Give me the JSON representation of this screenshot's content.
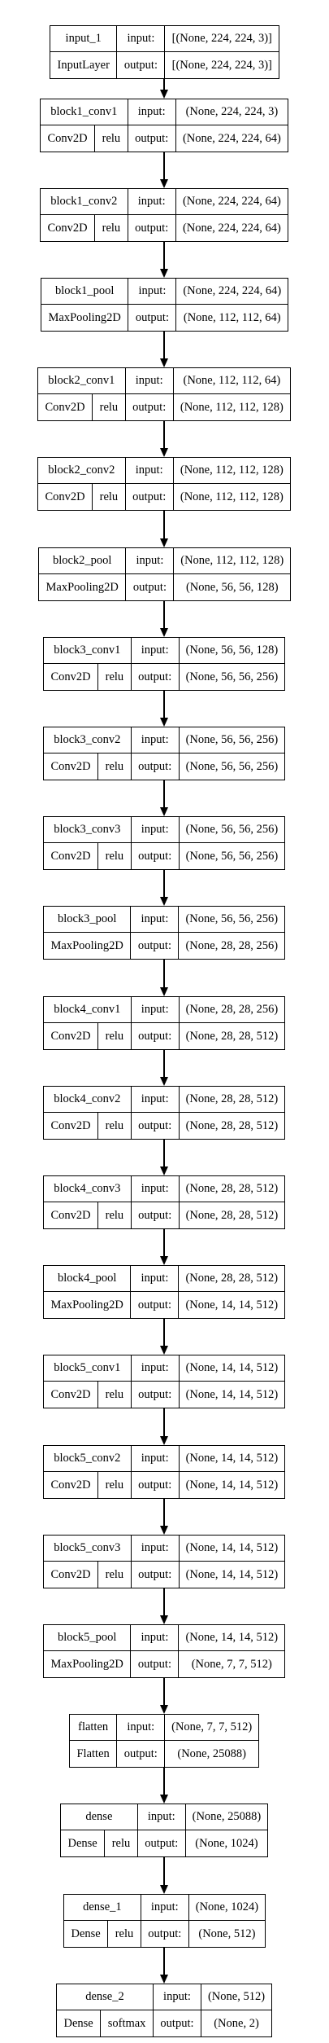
{
  "layers": [
    {
      "name": "input_1",
      "type": "InputLayer",
      "activation": "",
      "input_label": "input:",
      "output_label": "output:",
      "input_shape": "[(None, 224, 224, 3)]",
      "output_shape": "[(None, 224, 224, 3)]"
    },
    {
      "name": "block1_conv1",
      "type": "Conv2D",
      "activation": "relu",
      "input_label": "input:",
      "output_label": "output:",
      "input_shape": "(None, 224, 224, 3)",
      "output_shape": "(None, 224, 224, 64)"
    },
    {
      "name": "block1_conv2",
      "type": "Conv2D",
      "activation": "relu",
      "input_label": "input:",
      "output_label": "output:",
      "input_shape": "(None, 224, 224, 64)",
      "output_shape": "(None, 224, 224, 64)"
    },
    {
      "name": "block1_pool",
      "type": "MaxPooling2D",
      "activation": "",
      "input_label": "input:",
      "output_label": "output:",
      "input_shape": "(None, 224, 224, 64)",
      "output_shape": "(None, 112, 112, 64)"
    },
    {
      "name": "block2_conv1",
      "type": "Conv2D",
      "activation": "relu",
      "input_label": "input:",
      "output_label": "output:",
      "input_shape": "(None, 112, 112, 64)",
      "output_shape": "(None, 112, 112, 128)"
    },
    {
      "name": "block2_conv2",
      "type": "Conv2D",
      "activation": "relu",
      "input_label": "input:",
      "output_label": "output:",
      "input_shape": "(None, 112, 112, 128)",
      "output_shape": "(None, 112, 112, 128)"
    },
    {
      "name": "block2_pool",
      "type": "MaxPooling2D",
      "activation": "",
      "input_label": "input:",
      "output_label": "output:",
      "input_shape": "(None, 112, 112, 128)",
      "output_shape": "(None, 56, 56, 128)"
    },
    {
      "name": "block3_conv1",
      "type": "Conv2D",
      "activation": "relu",
      "input_label": "input:",
      "output_label": "output:",
      "input_shape": "(None, 56, 56, 128)",
      "output_shape": "(None, 56, 56, 256)"
    },
    {
      "name": "block3_conv2",
      "type": "Conv2D",
      "activation": "relu",
      "input_label": "input:",
      "output_label": "output:",
      "input_shape": "(None, 56, 56, 256)",
      "output_shape": "(None, 56, 56, 256)"
    },
    {
      "name": "block3_conv3",
      "type": "Conv2D",
      "activation": "relu",
      "input_label": "input:",
      "output_label": "output:",
      "input_shape": "(None, 56, 56, 256)",
      "output_shape": "(None, 56, 56, 256)"
    },
    {
      "name": "block3_pool",
      "type": "MaxPooling2D",
      "activation": "",
      "input_label": "input:",
      "output_label": "output:",
      "input_shape": "(None, 56, 56, 256)",
      "output_shape": "(None, 28, 28, 256)"
    },
    {
      "name": "block4_conv1",
      "type": "Conv2D",
      "activation": "relu",
      "input_label": "input:",
      "output_label": "output:",
      "input_shape": "(None, 28, 28, 256)",
      "output_shape": "(None, 28, 28, 512)"
    },
    {
      "name": "block4_conv2",
      "type": "Conv2D",
      "activation": "relu",
      "input_label": "input:",
      "output_label": "output:",
      "input_shape": "(None, 28, 28, 512)",
      "output_shape": "(None, 28, 28, 512)"
    },
    {
      "name": "block4_conv3",
      "type": "Conv2D",
      "activation": "relu",
      "input_label": "input:",
      "output_label": "output:",
      "input_shape": "(None, 28, 28, 512)",
      "output_shape": "(None, 28, 28, 512)"
    },
    {
      "name": "block4_pool",
      "type": "MaxPooling2D",
      "activation": "",
      "input_label": "input:",
      "output_label": "output:",
      "input_shape": "(None, 28, 28, 512)",
      "output_shape": "(None, 14, 14, 512)"
    },
    {
      "name": "block5_conv1",
      "type": "Conv2D",
      "activation": "relu",
      "input_label": "input:",
      "output_label": "output:",
      "input_shape": "(None, 14, 14, 512)",
      "output_shape": "(None, 14, 14, 512)"
    },
    {
      "name": "block5_conv2",
      "type": "Conv2D",
      "activation": "relu",
      "input_label": "input:",
      "output_label": "output:",
      "input_shape": "(None, 14, 14, 512)",
      "output_shape": "(None, 14, 14, 512)"
    },
    {
      "name": "block5_conv3",
      "type": "Conv2D",
      "activation": "relu",
      "input_label": "input:",
      "output_label": "output:",
      "input_shape": "(None, 14, 14, 512)",
      "output_shape": "(None, 14, 14, 512)"
    },
    {
      "name": "block5_pool",
      "type": "MaxPooling2D",
      "activation": "",
      "input_label": "input:",
      "output_label": "output:",
      "input_shape": "(None, 14, 14, 512)",
      "output_shape": "(None, 7, 7, 512)"
    },
    {
      "name": "flatten",
      "type": "Flatten",
      "activation": "",
      "input_label": "input:",
      "output_label": "output:",
      "input_shape": "(None, 7, 7, 512)",
      "output_shape": "(None, 25088)"
    },
    {
      "name": "dense",
      "type": "Dense",
      "activation": "relu",
      "input_label": "input:",
      "output_label": "output:",
      "input_shape": "(None, 25088)",
      "output_shape": "(None, 1024)"
    },
    {
      "name": "dense_1",
      "type": "Dense",
      "activation": "relu",
      "input_label": "input:",
      "output_label": "output:",
      "input_shape": "(None, 1024)",
      "output_shape": "(None, 512)"
    },
    {
      "name": "dense_2",
      "type": "Dense",
      "activation": "softmax",
      "input_label": "input:",
      "output_label": "output:",
      "input_shape": "(None, 512)",
      "output_shape": "(None, 2)"
    }
  ]
}
